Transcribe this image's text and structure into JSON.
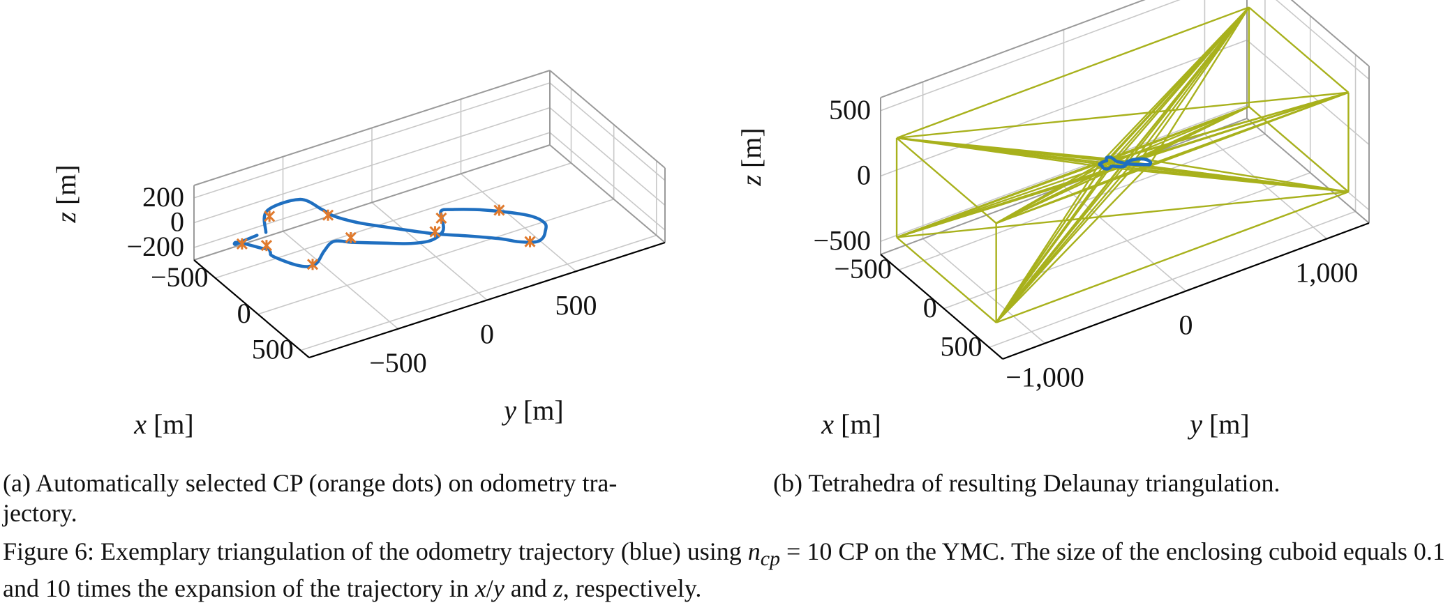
{
  "chart_data": [
    {
      "id": "a",
      "type": "line3d",
      "subcaption": "(a) Automatically selected CP (orange dots) on odometry trajectory.",
      "subcaption_lines": [
        "(a) Automatically selected CP (orange dots) on odometry tra-",
        "jectory."
      ],
      "xlabel": "x [m]",
      "ylabel": "y [m]",
      "zlabel": "z [m]",
      "xlim": [
        -750,
        600
      ],
      "ylim": [
        -1000,
        1000
      ],
      "zlim": [
        -300,
        300
      ],
      "xticks": [
        -500,
        0,
        500
      ],
      "xtick_labels": [
        "−500",
        "0",
        "500"
      ],
      "yticks": [
        -500,
        0,
        500
      ],
      "ytick_labels": [
        "−500",
        "0",
        "500"
      ],
      "zticks": [
        -200,
        0,
        200
      ],
      "ztick_labels": [
        "−200",
        "0",
        "200"
      ],
      "series": [
        {
          "name": "odometry trajectory",
          "color": "#1f6fc0",
          "points": [
            [
              -470,
              -730,
              -40
            ],
            [
              -520,
              -700,
              90
            ],
            [
              -430,
              -560,
              170
            ],
            [
              -250,
              -520,
              175
            ],
            [
              -150,
              -500,
              170
            ],
            [
              -30,
              -420,
              150
            ],
            [
              80,
              -300,
              120
            ],
            [
              230,
              -130,
              80
            ],
            [
              330,
              20,
              50
            ],
            [
              430,
              160,
              20
            ],
            [
              500,
              220,
              10
            ],
            [
              560,
              290,
              10
            ],
            [
              560,
              330,
              20
            ],
            [
              530,
              360,
              40
            ],
            [
              460,
              390,
              60
            ],
            [
              340,
              350,
              70
            ],
            [
              150,
              200,
              70
            ],
            [
              30,
              80,
              60
            ],
            [
              -20,
              40,
              40
            ],
            [
              -10,
              40,
              -20
            ],
            [
              40,
              20,
              -80
            ],
            [
              70,
              -60,
              -100
            ],
            [
              60,
              -170,
              -80
            ],
            [
              20,
              -300,
              -40
            ],
            [
              -50,
              -440,
              -10
            ],
            [
              -110,
              -520,
              0
            ],
            [
              -120,
              -570,
              -60
            ],
            [
              -100,
              -620,
              -120
            ],
            [
              -140,
              -650,
              -160
            ],
            [
              -220,
              -680,
              -180
            ],
            [
              -300,
              -720,
              -170
            ],
            [
              -320,
              -770,
              -120
            ],
            [
              -230,
              -820,
              -20
            ],
            [
              -150,
              -870,
              80
            ],
            [
              -100,
              -930,
              140
            ],
            [
              -180,
              -980,
              150
            ],
            [
              -280,
              -990,
              110
            ],
            [
              -350,
              -960,
              40
            ],
            [
              -420,
              -880,
              -10
            ],
            [
              -470,
              -780,
              -40
            ]
          ]
        }
      ],
      "control_points": [
        [
          -470,
          -710,
          80
        ],
        [
          -180,
          -520,
          170
        ],
        [
          220,
          -110,
          80
        ],
        [
          540,
          270,
          10
        ],
        [
          200,
          260,
          70
        ],
        [
          -20,
          40,
          -20
        ],
        [
          -80,
          -440,
          10
        ],
        [
          -110,
          -640,
          -130
        ],
        [
          -150,
          -880,
          110
        ],
        [
          -270,
          -960,
          90
        ]
      ],
      "control_point_color": "#e07a2d"
    },
    {
      "id": "b",
      "type": "line3d",
      "subcaption": "(b) Tetrahedra of resulting Delaunay triangulation.",
      "xlabel": "x [m]",
      "ylabel": "y [m]",
      "zlabel": "z [m]",
      "xlim": [
        -700,
        650
      ],
      "ylim": [
        -1300,
        1300
      ],
      "zlim": [
        -600,
        600
      ],
      "xticks": [
        -500,
        0,
        500
      ],
      "xtick_labels": [
        "−500",
        "0",
        "500"
      ],
      "yticks": [
        -1000,
        0,
        1000
      ],
      "ytick_labels": [
        "−1,000",
        "0",
        "1,000"
      ],
      "zticks": [
        -500,
        0,
        500
      ],
      "ztick_labels": [
        "−500",
        "0",
        "500"
      ],
      "series": [
        {
          "name": "odometry trajectory",
          "color": "#1f6fc0",
          "points": [
            [
              -70,
              -100,
              10
            ],
            [
              -80,
              -95,
              25
            ],
            [
              -60,
              -80,
              35
            ],
            [
              -30,
              -75,
              35
            ],
            [
              -10,
              -70,
              30
            ],
            [
              10,
              -50,
              25
            ],
            [
              30,
              -30,
              20
            ],
            [
              50,
              0,
              15
            ],
            [
              65,
              30,
              10
            ],
            [
              80,
              60,
              5
            ],
            [
              90,
              80,
              3
            ],
            [
              100,
              95,
              3
            ],
            [
              95,
              105,
              5
            ],
            [
              85,
              110,
              8
            ],
            [
              60,
              105,
              12
            ],
            [
              30,
              80,
              12
            ],
            [
              10,
              40,
              10
            ],
            [
              0,
              10,
              5
            ],
            [
              -5,
              0,
              0
            ],
            [
              0,
              0,
              -5
            ],
            [
              5,
              -10,
              -12
            ],
            [
              10,
              -30,
              -15
            ],
            [
              5,
              -50,
              -12
            ],
            [
              -5,
              -70,
              -8
            ],
            [
              -15,
              -85,
              -5
            ],
            [
              -25,
              -95,
              -8
            ],
            [
              -25,
              -105,
              -15
            ],
            [
              -30,
              -115,
              -22
            ],
            [
              -40,
              -125,
              -25
            ],
            [
              -50,
              -135,
              -22
            ],
            [
              -55,
              -140,
              -12
            ],
            [
              -50,
              -145,
              0
            ],
            [
              -40,
              -155,
              12
            ],
            [
              -45,
              -165,
              20
            ],
            [
              -55,
              -160,
              18
            ],
            [
              -65,
              -140,
              14
            ],
            [
              -70,
              -120,
              12
            ],
            [
              -70,
              -100,
              10
            ]
          ]
        }
      ],
      "tetrahedra": {
        "color": "#a8b11c",
        "cuboid_corners": [
          [
            -600,
            -1250,
            -430
          ],
          [
            -600,
            -1250,
            330
          ],
          [
            -600,
            1250,
            -430
          ],
          [
            -600,
            1250,
            330
          ],
          [
            500,
            -1250,
            -430
          ],
          [
            500,
            -1250,
            330
          ],
          [
            500,
            1250,
            -430
          ],
          [
            500,
            1250,
            330
          ]
        ],
        "trajectory_control_point_count": 10
      }
    }
  ],
  "figure_caption": {
    "text_before": "Figure 6: Exemplary triangulation of the odometry trajectory (blue) using ",
    "math_n": "n",
    "math_sub": "cp",
    "text_after_math": " = 10 CP on the YMC. The size of the enclosing cuboid equals 0.1 and 10 times the expansion of the trajectory in ",
    "math_x": "x",
    "slash": "/",
    "math_y": "y",
    "and": " and ",
    "math_z": "z",
    "end": ", respectively."
  }
}
